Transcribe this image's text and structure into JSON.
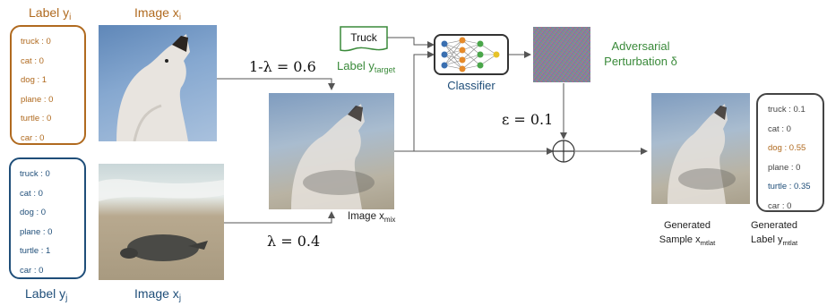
{
  "label_i": {
    "title_main": "Label y",
    "title_sub": "i",
    "items": [
      {
        "name": "truck",
        "value": "0"
      },
      {
        "name": "cat",
        "value": "0"
      },
      {
        "name": "dog",
        "value": "1"
      },
      {
        "name": "plane",
        "value": "0"
      },
      {
        "name": "turtle",
        "value": "0"
      },
      {
        "name": "car",
        "value": "0"
      }
    ]
  },
  "label_j": {
    "title_main": "Label y",
    "title_sub": "j",
    "items": [
      {
        "name": "truck",
        "value": "0"
      },
      {
        "name": "cat",
        "value": "0"
      },
      {
        "name": "dog",
        "value": "0"
      },
      {
        "name": "plane",
        "value": "0"
      },
      {
        "name": "turtle",
        "value": "1"
      },
      {
        "name": "car",
        "value": "0"
      }
    ]
  },
  "image_i": {
    "title_main": "Image x",
    "title_sub": "i"
  },
  "image_j": {
    "title_main": "Image x",
    "title_sub": "j"
  },
  "weight_top": "1-λ = 0.6",
  "weight_bottom": "λ = 0.4",
  "mix": {
    "caption_main": "Image x",
    "caption_sub": "mix"
  },
  "target": {
    "box_text": "Truck",
    "label_main": "Label y",
    "label_sub": "target"
  },
  "classifier_label": "Classifier",
  "perturbation": {
    "line1": "Adversarial",
    "line2": "Perturbation δ"
  },
  "epsilon": "ε = 0.1",
  "generated_sample": {
    "line1": "Generated",
    "line2_main": "Sample x",
    "line2_sub": "mtlat"
  },
  "generated_label": {
    "line1": "Generated",
    "line2_main": "Label y",
    "line2_sub": "mtlat",
    "items": [
      {
        "name": "truck",
        "value": "0.1"
      },
      {
        "name": "cat",
        "value": "0"
      },
      {
        "name": "dog",
        "value": "0.55"
      },
      {
        "name": "plane",
        "value": "0"
      },
      {
        "name": "turtle",
        "value": "0.35"
      },
      {
        "name": "car",
        "value": "0"
      }
    ]
  },
  "colors": {
    "orange": "#b06a1f",
    "blue": "#1f4e79",
    "green": "#3a8a3a",
    "gray": "#444444"
  }
}
